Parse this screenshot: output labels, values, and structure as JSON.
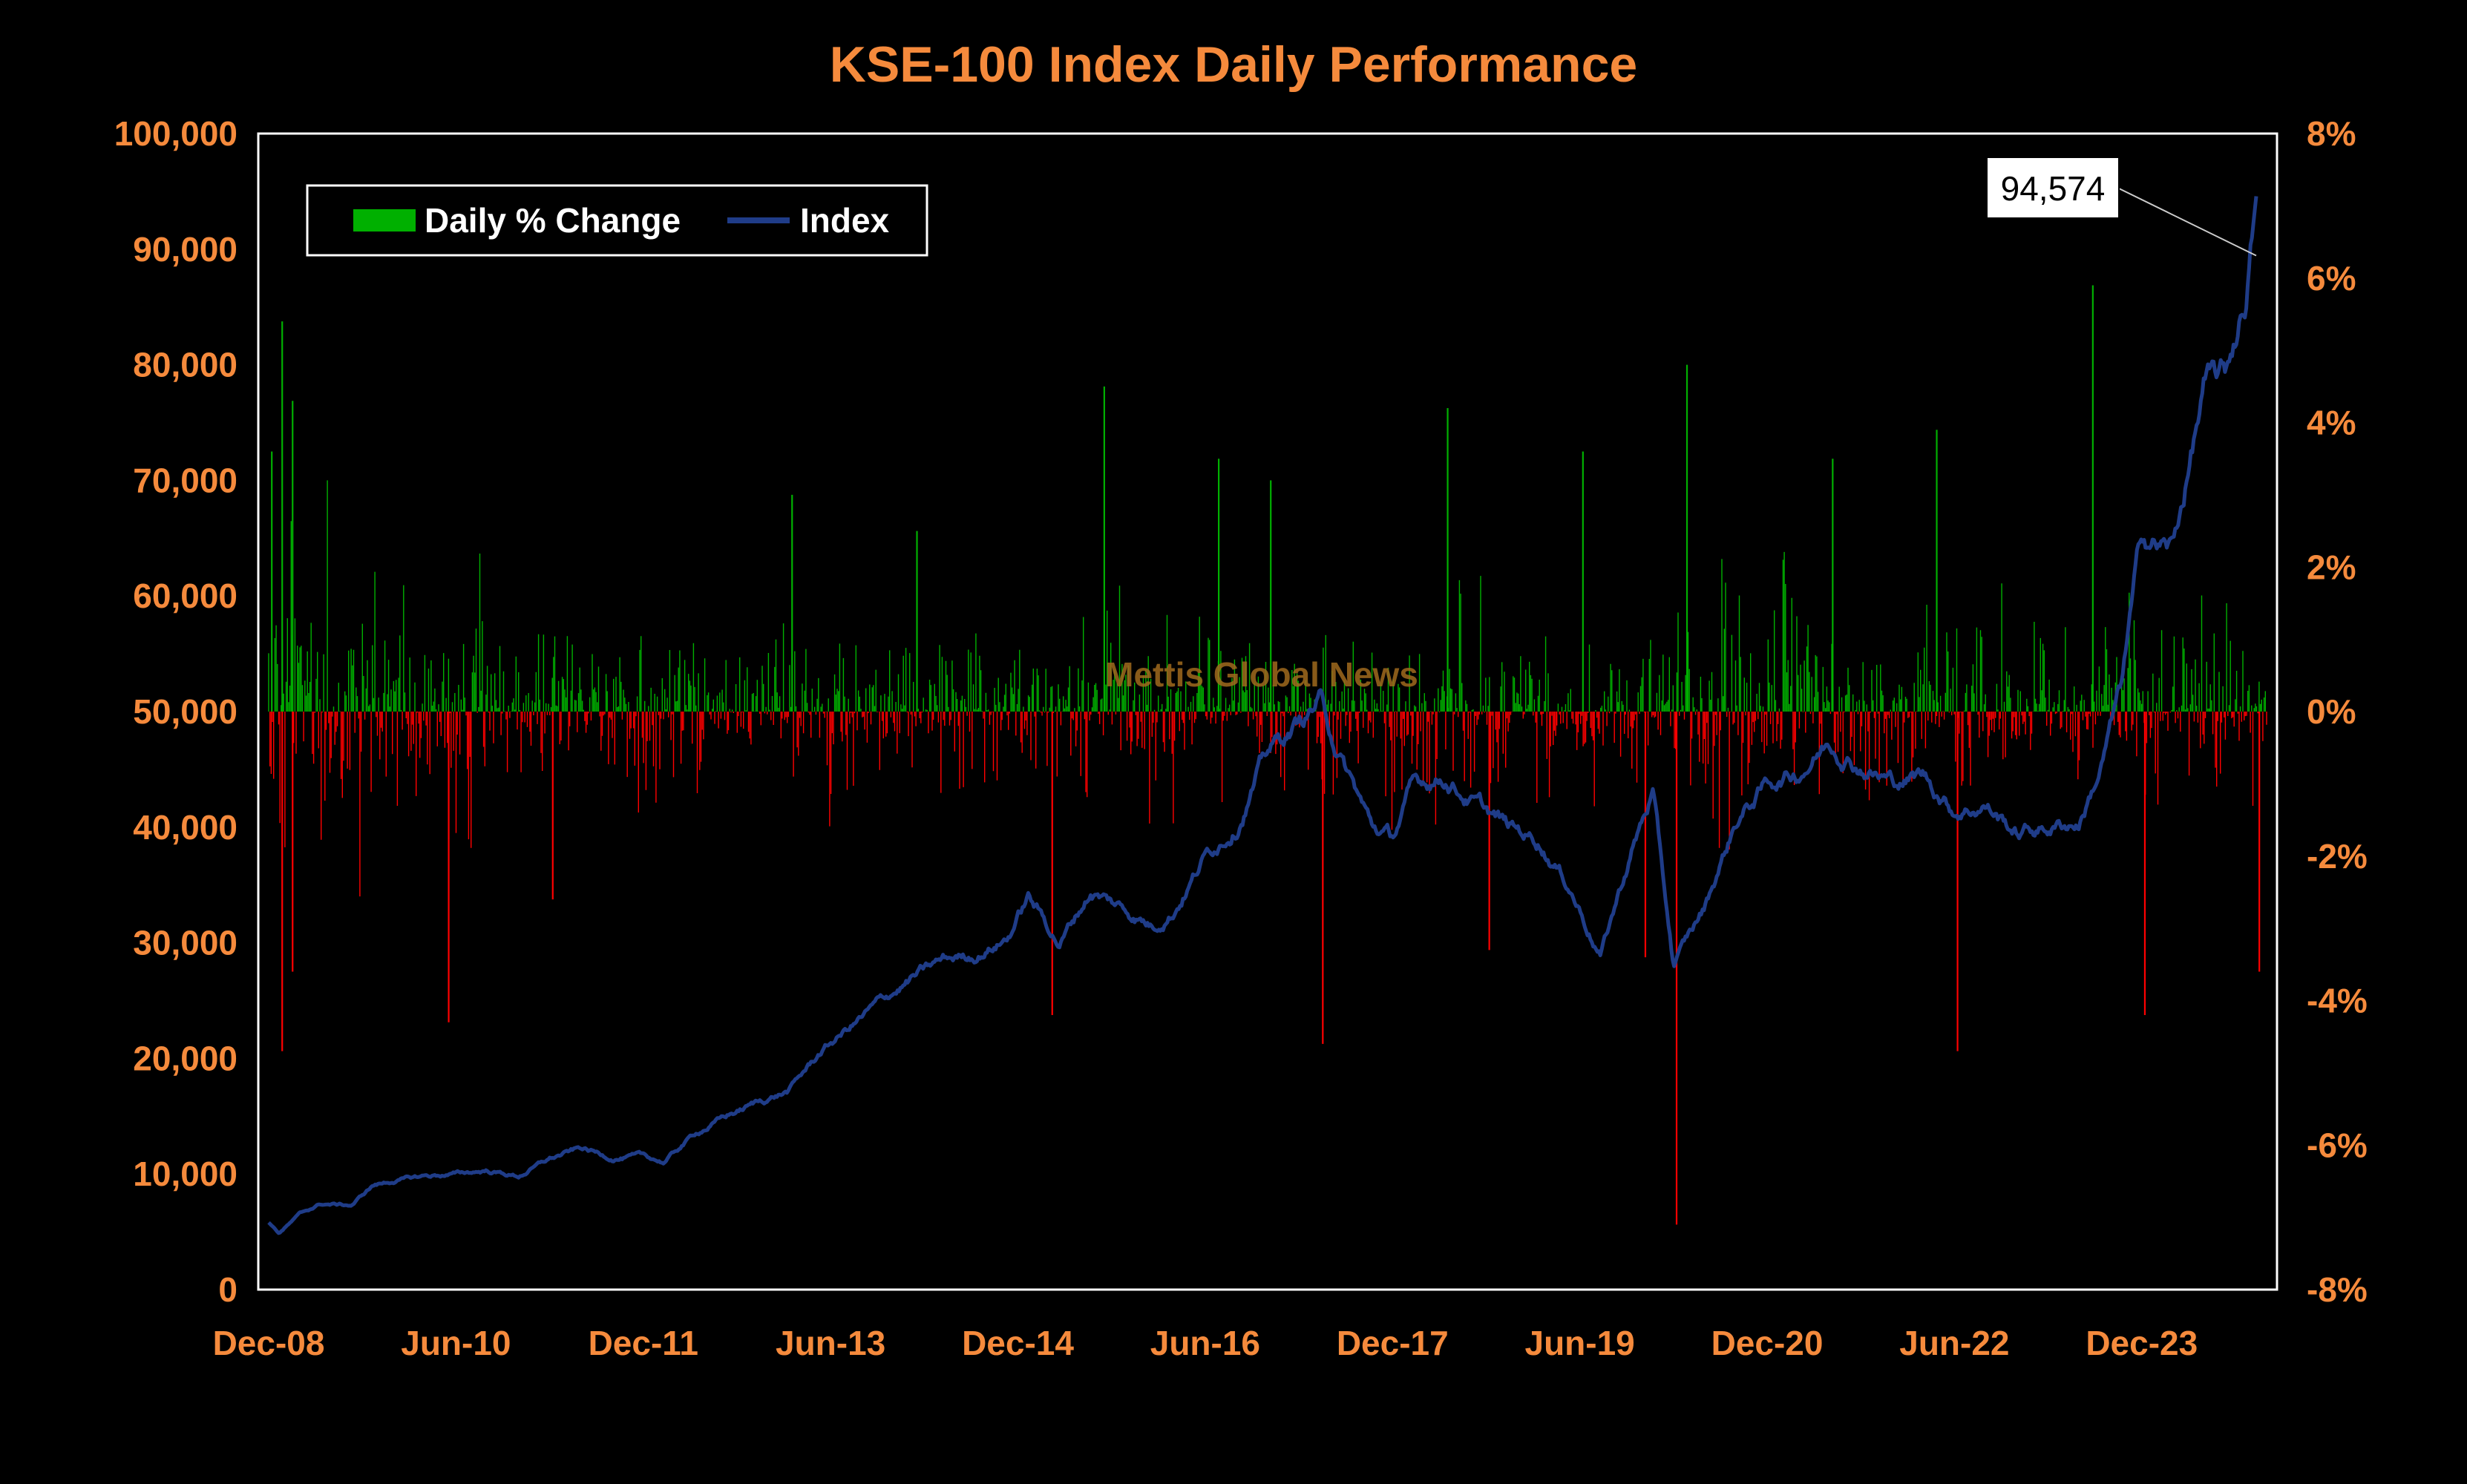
{
  "chart_data": {
    "type": "bar",
    "title": "KSE-100 Index Daily Performance",
    "watermark": "Mettis Global News",
    "x_tick_labels": [
      "Dec-08",
      "Jun-10",
      "Dec-11",
      "Jun-13",
      "Dec-14",
      "Jun-16",
      "Dec-17",
      "Jun-19",
      "Dec-20",
      "Jun-22",
      "Dec-23"
    ],
    "x_range": [
      "2008-12",
      "2024-12"
    ],
    "y_left": {
      "ylim": [
        0,
        100000
      ],
      "ticks": [
        0,
        10000,
        20000,
        30000,
        40000,
        50000,
        60000,
        70000,
        80000,
        90000,
        100000
      ],
      "tick_labels": [
        "0",
        "10,000",
        "20,000",
        "30,000",
        "40,000",
        "50,000",
        "60,000",
        "70,000",
        "80,000",
        "90,000",
        "100,000"
      ]
    },
    "y_right": {
      "ylim": [
        -8,
        8
      ],
      "ticks": [
        -8,
        -6,
        -4,
        -2,
        0,
        2,
        4,
        6,
        8
      ],
      "tick_labels": [
        "-8%",
        "-6%",
        "-4%",
        "-2%",
        "0%",
        "2%",
        "4%",
        "6%",
        "8%"
      ]
    },
    "legend": {
      "placement": "top-left",
      "entries": [
        {
          "label": "Daily % Change",
          "color": "#00b000"
        },
        {
          "label": "Index",
          "color": "#1f3c88"
        }
      ]
    },
    "series": [
      {
        "name": "Index",
        "type": "line",
        "axis": "left",
        "color": "#1f3c88",
        "points": [
          [
            "2008-12",
            5800
          ],
          [
            "2009-01",
            4900
          ],
          [
            "2009-03",
            6500
          ],
          [
            "2009-05",
            7400
          ],
          [
            "2009-08",
            7300
          ],
          [
            "2009-10",
            9000
          ],
          [
            "2009-12",
            9400
          ],
          [
            "2010-03",
            9800
          ],
          [
            "2010-06",
            10000
          ],
          [
            "2010-09",
            10300
          ],
          [
            "2010-12",
            9800
          ],
          [
            "2011-03",
            11300
          ],
          [
            "2011-06",
            12200
          ],
          [
            "2011-09",
            11400
          ],
          [
            "2011-12",
            11500
          ],
          [
            "2012-02",
            11000
          ],
          [
            "2012-05",
            13500
          ],
          [
            "2012-08",
            15000
          ],
          [
            "2012-11",
            16200
          ],
          [
            "2013-02",
            17200
          ],
          [
            "2013-05",
            20500
          ],
          [
            "2013-08",
            22800
          ],
          [
            "2013-11",
            25000
          ],
          [
            "2014-02",
            27000
          ],
          [
            "2014-05",
            28500
          ],
          [
            "2014-08",
            29000
          ],
          [
            "2014-11",
            30500
          ],
          [
            "2015-01",
            34000
          ],
          [
            "2015-04",
            30000
          ],
          [
            "2015-07",
            34500
          ],
          [
            "2015-10",
            33000
          ],
          [
            "2016-01",
            31500
          ],
          [
            "2016-03",
            33000
          ],
          [
            "2016-06",
            37500
          ],
          [
            "2016-09",
            40500
          ],
          [
            "2016-12",
            46500
          ],
          [
            "2017-03",
            49000
          ],
          [
            "2017-05",
            51000
          ],
          [
            "2017-07",
            46000
          ],
          [
            "2017-10",
            40000
          ],
          [
            "2017-12",
            39000
          ],
          [
            "2018-02",
            43500
          ],
          [
            "2018-05",
            44500
          ],
          [
            "2018-08",
            42000
          ],
          [
            "2018-11",
            40000
          ],
          [
            "2019-02",
            39000
          ],
          [
            "2019-05",
            35000
          ],
          [
            "2019-08",
            29000
          ],
          [
            "2019-11",
            38000
          ],
          [
            "2020-01",
            43000
          ],
          [
            "2020-03",
            28000
          ],
          [
            "2020-06",
            33000
          ],
          [
            "2020-09",
            40500
          ],
          [
            "2020-12",
            43800
          ],
          [
            "2021-03",
            44800
          ],
          [
            "2021-06",
            47500
          ],
          [
            "2021-09",
            45500
          ],
          [
            "2021-12",
            43900
          ],
          [
            "2022-03",
            44500
          ],
          [
            "2022-06",
            41500
          ],
          [
            "2022-09",
            42000
          ],
          [
            "2022-12",
            39500
          ],
          [
            "2023-03",
            40000
          ],
          [
            "2023-06",
            40500
          ],
          [
            "2023-08",
            45000
          ],
          [
            "2023-10",
            52000
          ],
          [
            "2023-12",
            65000
          ],
          [
            "2024-03",
            64000
          ],
          [
            "2024-06",
            78000
          ],
          [
            "2024-08",
            78500
          ],
          [
            "2024-10",
            86000
          ],
          [
            "2024-11",
            94574
          ]
        ]
      },
      {
        "name": "Daily % Change",
        "type": "bar",
        "axis": "right",
        "positive_color": "#00b000",
        "negative_color": "#ff0000",
        "notable_values": [
          [
            "2008-12",
            3.6
          ],
          [
            "2009-01",
            5.4
          ],
          [
            "2009-01",
            -4.7
          ],
          [
            "2009-02",
            4.3
          ],
          [
            "2009-02",
            -3.6
          ],
          [
            "2010-05",
            -4.3
          ],
          [
            "2011-03",
            -2.6
          ],
          [
            "2013-02",
            3.0
          ],
          [
            "2014-02",
            2.5
          ],
          [
            "2015-03",
            -4.2
          ],
          [
            "2015-08",
            4.5
          ],
          [
            "2016-07",
            3.5
          ],
          [
            "2016-12",
            3.2
          ],
          [
            "2017-05",
            -4.6
          ],
          [
            "2018-05",
            4.2
          ],
          [
            "2018-09",
            -3.3
          ],
          [
            "2019-06",
            3.6
          ],
          [
            "2019-12",
            -3.4
          ],
          [
            "2020-03",
            -7.1
          ],
          [
            "2020-04",
            4.8
          ],
          [
            "2021-06",
            3.5
          ],
          [
            "2022-04",
            3.9
          ],
          [
            "2022-06",
            -4.7
          ],
          [
            "2023-07",
            5.9
          ],
          [
            "2023-12",
            -4.2
          ],
          [
            "2024-11",
            -3.6
          ]
        ]
      }
    ],
    "annotations": [
      {
        "text": "94,574",
        "target_date": "2024-11",
        "target_value": 94574
      }
    ]
  },
  "colors": {
    "background": "#000000",
    "title": "#f58a3c",
    "axis_labels": "#f58a3c",
    "plot_border": "#ffffff",
    "watermark": "#a06a1e"
  }
}
